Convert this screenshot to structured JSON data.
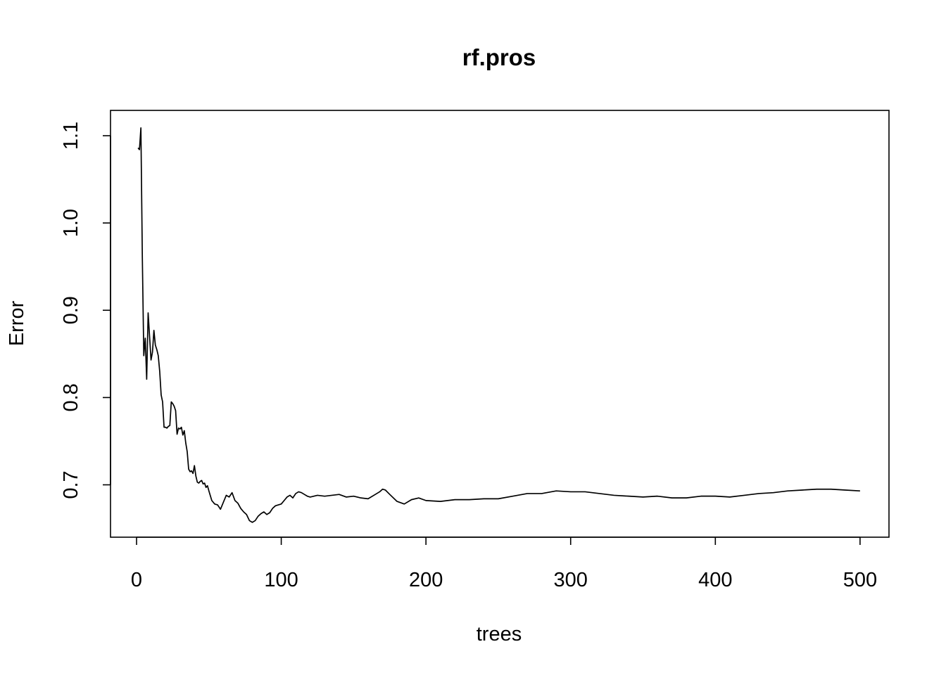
{
  "chart_data": {
    "type": "line",
    "title": "rf.pros",
    "xlabel": "trees",
    "ylabel": "Error",
    "xlim": [
      -18,
      520
    ],
    "ylim": [
      0.64,
      1.129
    ],
    "x_ticks": [
      0,
      100,
      200,
      300,
      400,
      500
    ],
    "x_tick_labels": [
      "0",
      "100",
      "200",
      "300",
      "400",
      "500"
    ],
    "y_ticks": [
      0.7,
      0.8,
      0.9,
      1.0,
      1.1
    ],
    "y_tick_labels": [
      "0.7",
      "0.8",
      "0.9",
      "1.0",
      "1.1"
    ],
    "grid": false,
    "legend": "none",
    "color": "#000000",
    "series": [
      {
        "x": [
          1,
          2,
          3,
          4,
          5,
          6,
          7,
          8,
          9,
          10,
          11,
          12,
          13,
          14,
          15,
          16,
          17,
          18,
          19,
          20,
          21,
          22,
          23,
          24,
          25,
          26,
          27,
          28,
          29,
          30,
          31,
          32,
          33,
          34,
          35,
          36,
          37,
          38,
          39,
          40,
          41,
          42,
          43,
          44,
          45,
          46,
          47,
          48,
          49,
          50,
          52,
          54,
          56,
          58,
          60,
          62,
          64,
          66,
          68,
          70,
          72,
          74,
          76,
          78,
          80,
          82,
          84,
          86,
          88,
          90,
          92,
          94,
          96,
          98,
          100,
          102,
          104,
          106,
          108,
          110,
          112,
          114,
          116,
          118,
          120,
          125,
          130,
          135,
          140,
          145,
          150,
          155,
          160,
          165,
          168,
          170,
          172,
          175,
          180,
          185,
          190,
          195,
          200,
          210,
          220,
          230,
          240,
          250,
          260,
          270,
          280,
          290,
          300,
          310,
          320,
          330,
          340,
          350,
          360,
          370,
          380,
          390,
          400,
          410,
          420,
          430,
          440,
          450,
          460,
          470,
          480,
          490,
          500
        ],
        "values": [
          1.086,
          1.084,
          1.109,
          0.96,
          0.848,
          0.868,
          0.821,
          0.897,
          0.87,
          0.843,
          0.852,
          0.877,
          0.86,
          0.855,
          0.848,
          0.83,
          0.803,
          0.795,
          0.766,
          0.766,
          0.765,
          0.767,
          0.768,
          0.795,
          0.793,
          0.79,
          0.785,
          0.758,
          0.765,
          0.764,
          0.766,
          0.757,
          0.762,
          0.748,
          0.738,
          0.718,
          0.715,
          0.716,
          0.713,
          0.722,
          0.71,
          0.703,
          0.702,
          0.704,
          0.705,
          0.701,
          0.702,
          0.697,
          0.699,
          0.693,
          0.682,
          0.678,
          0.677,
          0.672,
          0.68,
          0.688,
          0.686,
          0.691,
          0.682,
          0.679,
          0.673,
          0.669,
          0.666,
          0.659,
          0.657,
          0.659,
          0.664,
          0.667,
          0.669,
          0.666,
          0.668,
          0.673,
          0.676,
          0.677,
          0.678,
          0.682,
          0.686,
          0.688,
          0.685,
          0.69,
          0.692,
          0.691,
          0.689,
          0.687,
          0.686,
          0.688,
          0.687,
          0.688,
          0.689,
          0.686,
          0.687,
          0.685,
          0.684,
          0.689,
          0.692,
          0.695,
          0.694,
          0.689,
          0.681,
          0.678,
          0.683,
          0.685,
          0.682,
          0.681,
          0.683,
          0.683,
          0.684,
          0.684,
          0.687,
          0.69,
          0.69,
          0.693,
          0.692,
          0.692,
          0.69,
          0.688,
          0.687,
          0.686,
          0.687,
          0.685,
          0.685,
          0.687,
          0.687,
          0.686,
          0.688,
          0.69,
          0.691,
          0.693,
          0.694,
          0.695,
          0.695,
          0.694,
          0.693
        ]
      }
    ]
  }
}
